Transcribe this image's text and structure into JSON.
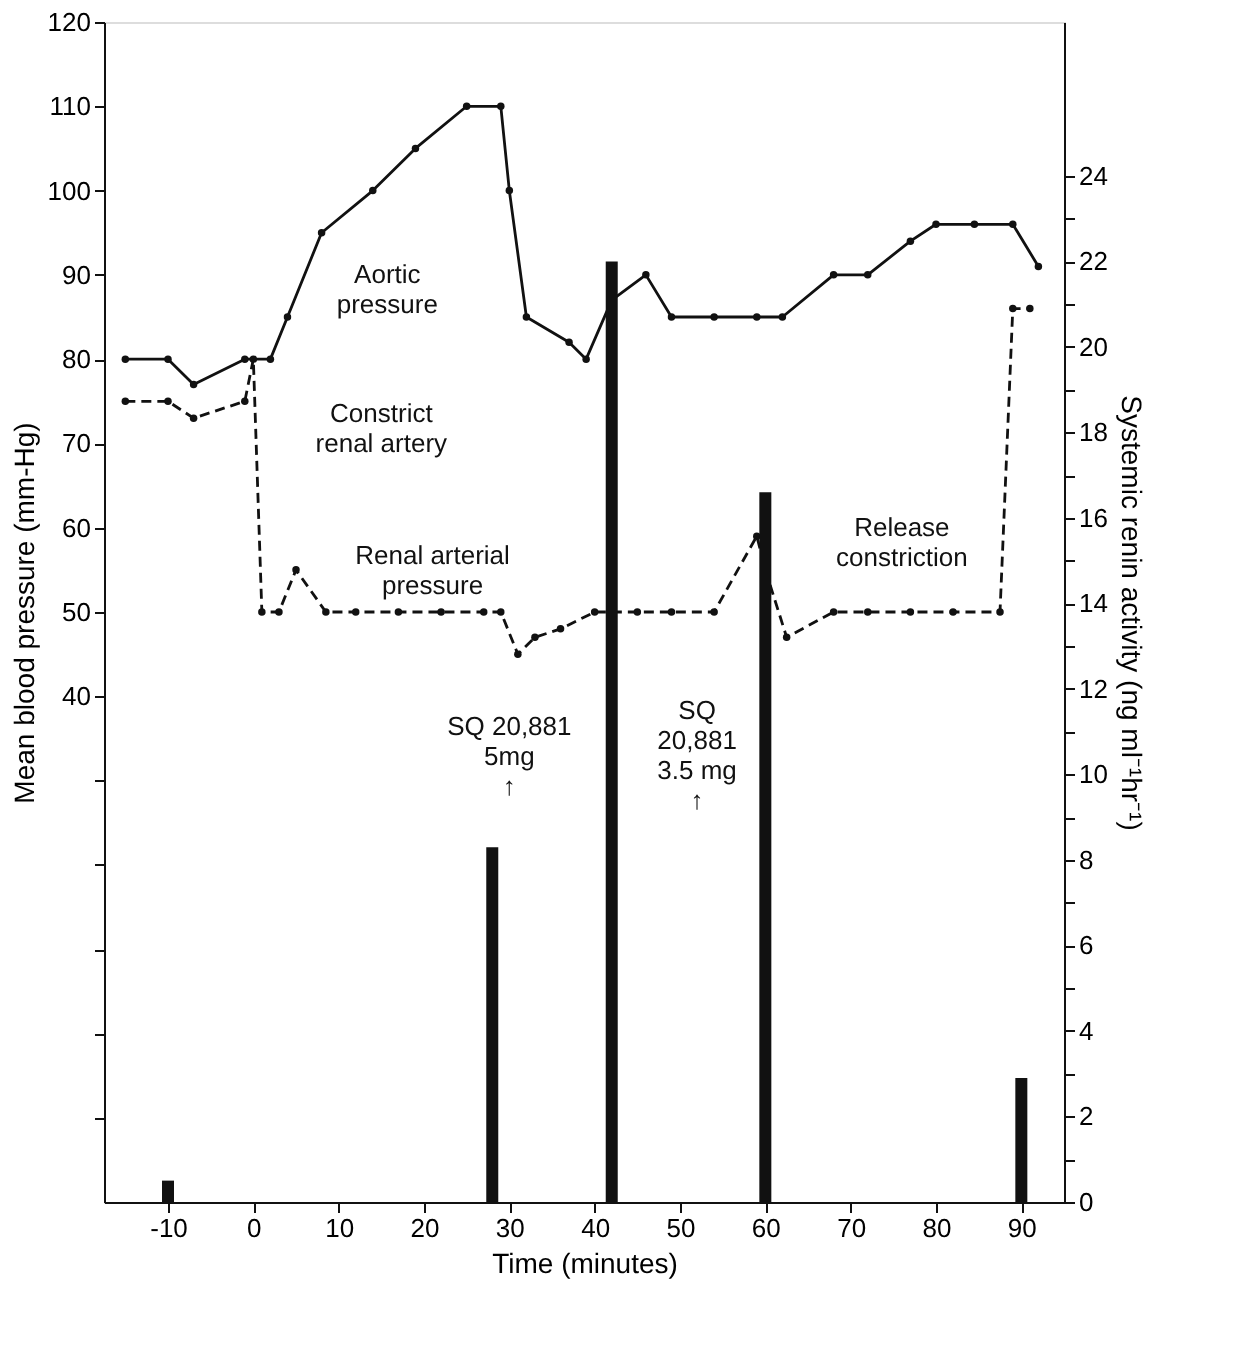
{
  "chart_data": {
    "type": "line",
    "xlabel": "Time (minutes)",
    "ylabel": "Mean blood pressure (mm-Hg)",
    "y2label": "Systemic renin activity (ng ml⁻¹hr⁻¹)",
    "xlim": [
      -17.5,
      95
    ],
    "xticks": [
      -10,
      0,
      10,
      20,
      30,
      40,
      50,
      60,
      70,
      80,
      90
    ],
    "ylim": [
      -20,
      120
    ],
    "yticks": [
      {
        "value": -10,
        "label": null
      },
      {
        "value": 0,
        "label": null
      },
      {
        "value": 10,
        "label": null
      },
      {
        "value": 20,
        "label": null
      },
      {
        "value": 30,
        "label": null
      },
      40,
      50,
      60,
      70,
      80,
      90,
      100,
      110,
      120
    ],
    "y2lim": [
      0,
      27.6
    ],
    "y2ticks": [
      0,
      {
        "value": 1,
        "label": null
      },
      2,
      {
        "value": 3,
        "label": null
      },
      4,
      {
        "value": 5,
        "label": null
      },
      6,
      {
        "value": 7,
        "label": null
      },
      8,
      {
        "value": 9,
        "label": null
      },
      10,
      {
        "value": 11,
        "label": null
      },
      12,
      {
        "value": 13,
        "label": null
      },
      14,
      {
        "value": 15,
        "label": null
      },
      16,
      {
        "value": 17,
        "label": null
      },
      18,
      {
        "value": 19,
        "label": null
      },
      20,
      {
        "value": 21,
        "label": null
      },
      22,
      {
        "value": 23,
        "label": null
      },
      24
    ],
    "grid": false,
    "legend": false,
    "marker": "circle",
    "series": [
      {
        "color": "#111111",
        "line_style": "solid",
        "x": [
          -15,
          -10,
          -7,
          -1,
          2,
          4,
          8,
          14,
          19,
          25,
          29,
          30,
          32,
          37,
          39,
          42,
          46,
          49,
          54,
          59,
          62,
          68,
          72,
          77,
          80,
          84.5,
          89,
          92
        ],
        "values": [
          80,
          80,
          77,
          80,
          80,
          85,
          95,
          100,
          105,
          110,
          110,
          100,
          85,
          82,
          80,
          87,
          90,
          85,
          85,
          85,
          85,
          90,
          90,
          94,
          96,
          96,
          96,
          91
        ]
      },
      {
        "color": "#111111",
        "line_style": "dashed",
        "x": [
          -15,
          -10,
          -7,
          -1,
          0,
          1,
          3,
          5,
          8.5,
          12,
          17,
          22,
          27,
          29,
          31,
          33,
          36,
          40,
          45,
          49,
          54,
          59,
          60,
          62.5,
          68,
          72,
          77,
          82,
          87.5,
          89,
          91
        ],
        "values": [
          75,
          75,
          73,
          75,
          80,
          50,
          50,
          55,
          50,
          50,
          50,
          50,
          50,
          50,
          45,
          47,
          48,
          50,
          50,
          50,
          50,
          59,
          55,
          47,
          50,
          50,
          50,
          50,
          50,
          86,
          86
        ]
      },
      {
        "type": "bar",
        "axis": "y2",
        "color": "#111111",
        "x": [
          -10,
          28,
          42,
          60,
          90
        ],
        "values": [
          0.5,
          8.3,
          22,
          16.6,
          2.9
        ]
      }
    ],
    "annotations": [
      "Aortic\npressure",
      "Constrict\nrenal artery",
      "Renal arterial\npressure",
      "SQ 20,881\n5mg\n↑",
      "SQ\n20,881\n3.5 mg\n↑",
      "Release\nconstriction"
    ]
  }
}
